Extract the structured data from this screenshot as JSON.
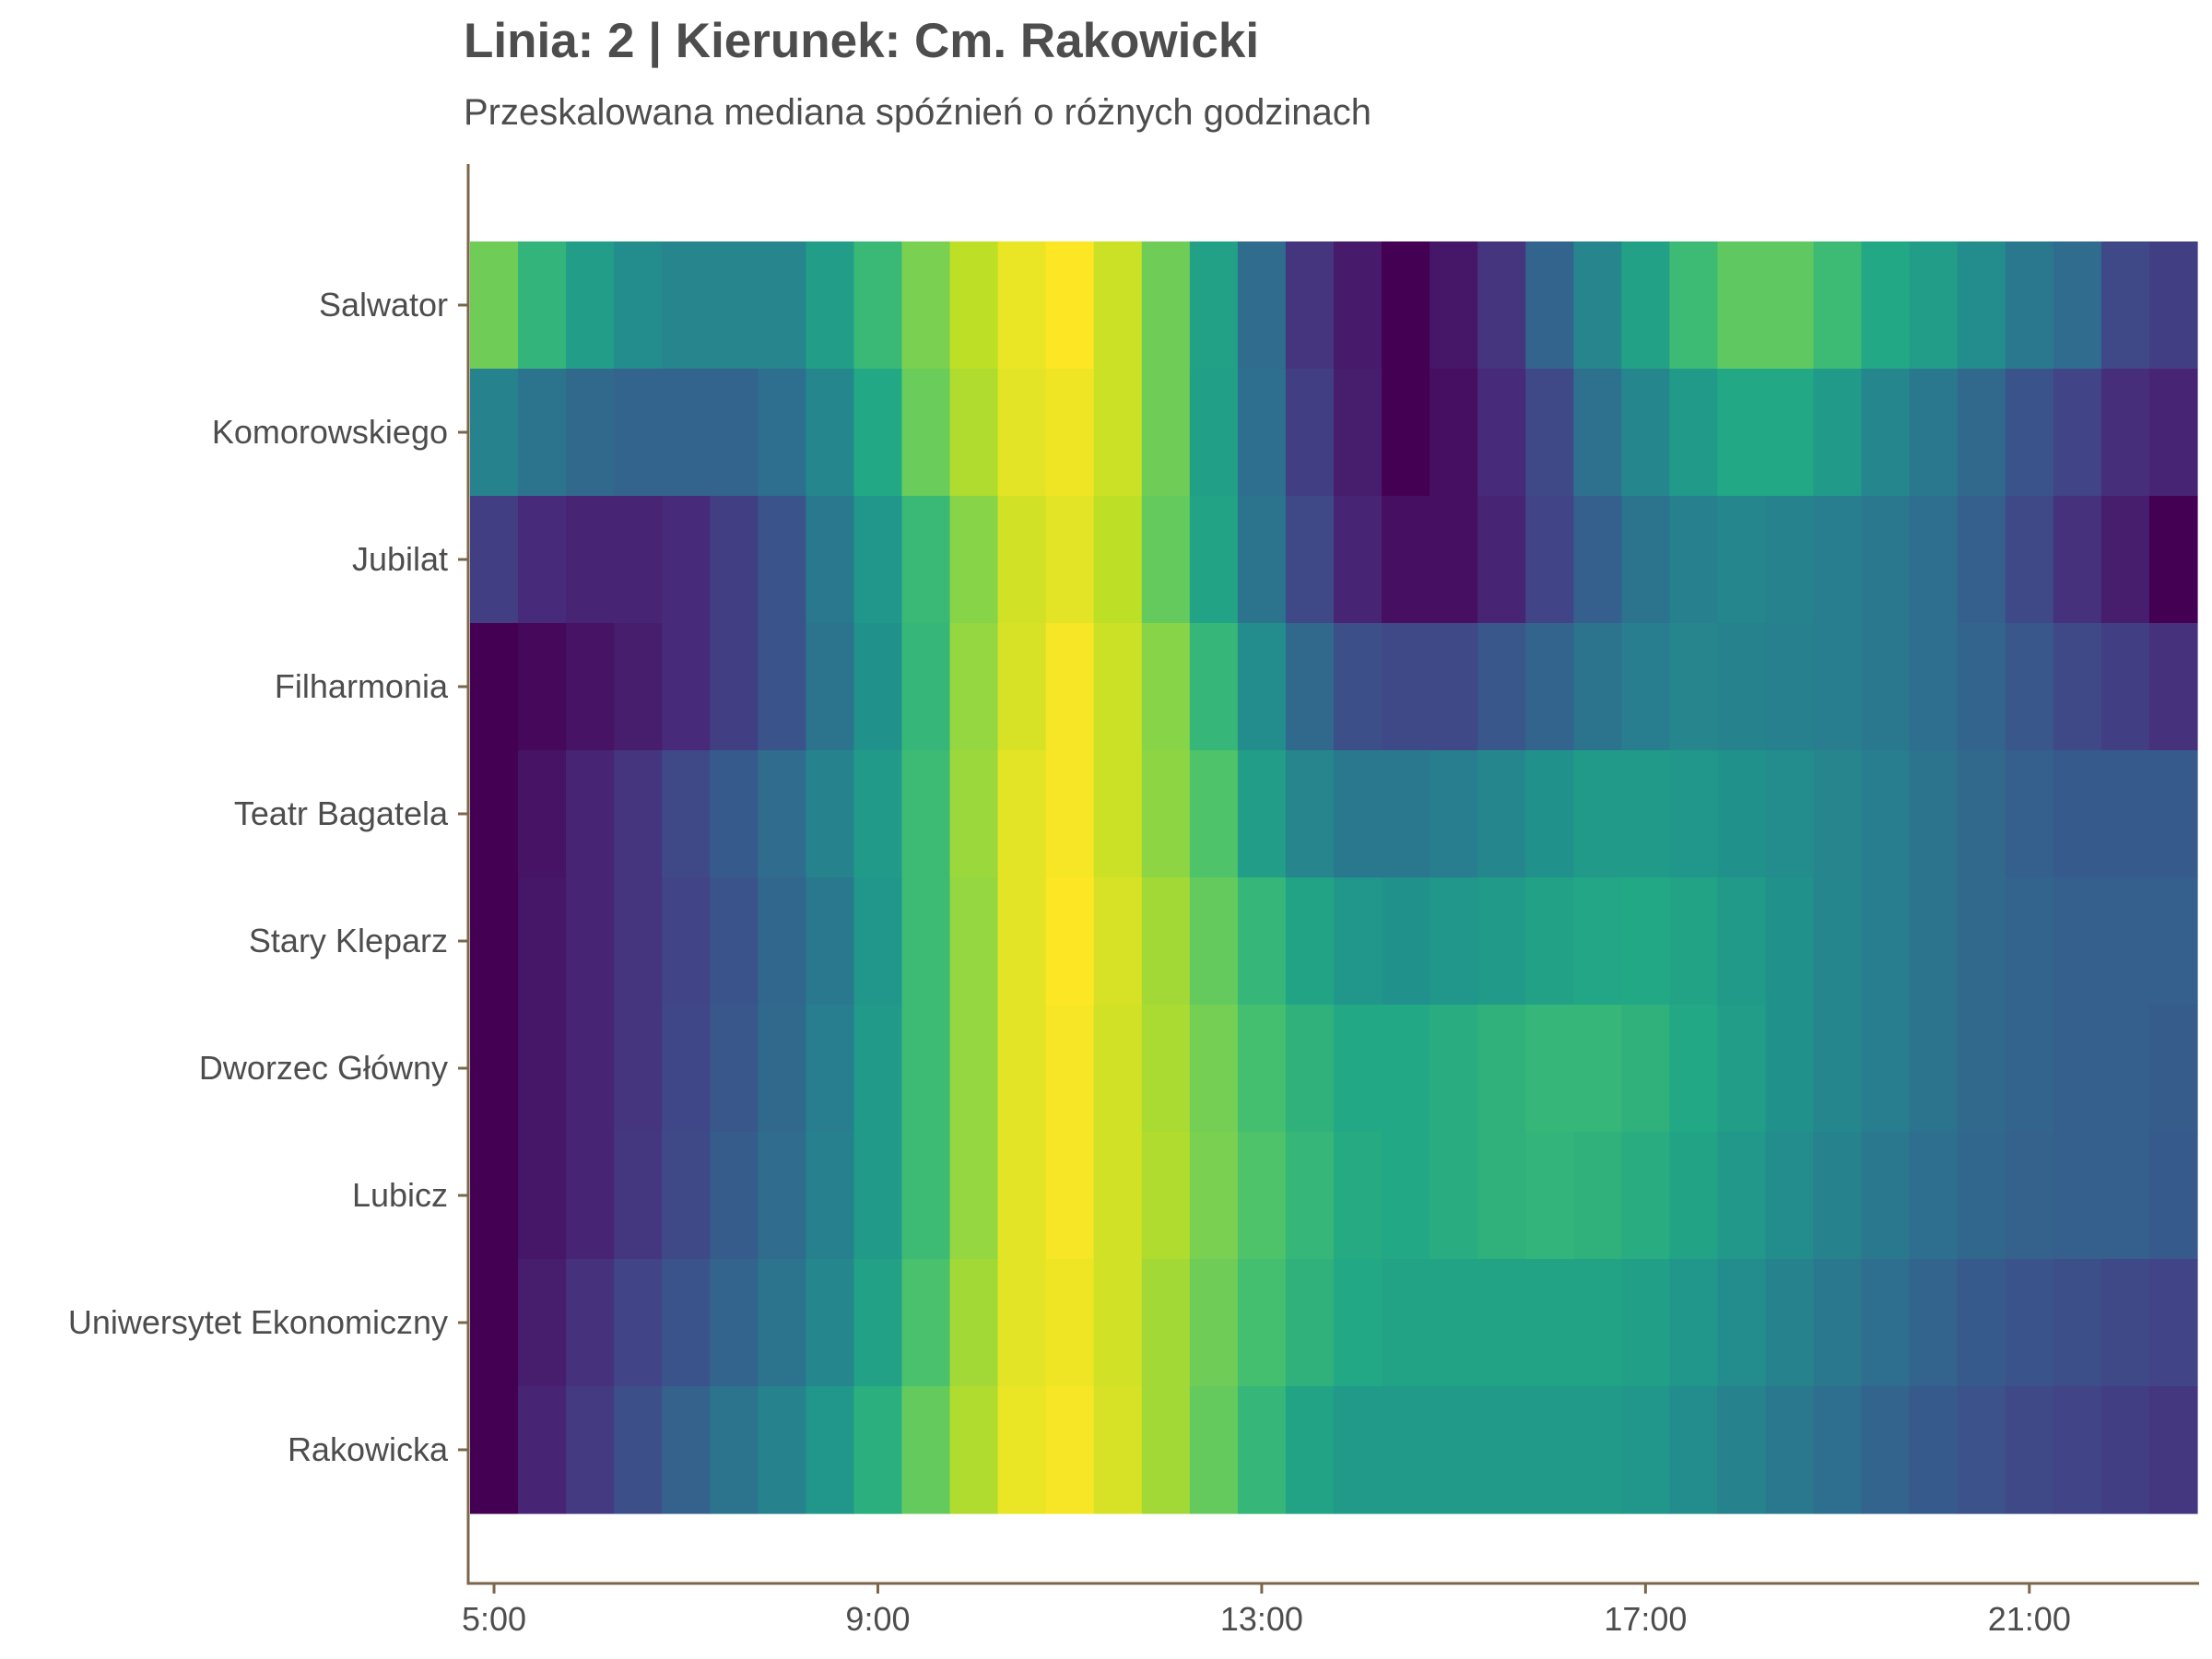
{
  "title": "Linia: 2 | Kierunek: Cm. Rakowicki",
  "subtitle": "Przeskalowana mediana spóźnień o różnych godzinach",
  "axis_color": "#7b6649",
  "chart_data": {
    "type": "heatmap",
    "title": "Linia: 2 | Kierunek: Cm. Rakowicki",
    "subtitle": "Przeskalowana mediana spóźnień o różnych godzinach",
    "colorscale": "viridis",
    "value_range": [
      0,
      1
    ],
    "x_start_hour": 5.0,
    "x_step_hours": 0.5,
    "x_range": [
      "5:00",
      "23:00"
    ],
    "x_ticks": [
      "5:00",
      "9:00",
      "13:00",
      "17:00",
      "21:00"
    ],
    "y_categories": [
      "Salwator",
      "Komorowskiego",
      "Jubilat",
      "Filharmonia",
      "Teatr Bagatela",
      "Stary Kleparz",
      "Dworzec Główny",
      "Lubicz",
      "Uniwersytet Ekonomiczny",
      "Rakowicka"
    ],
    "values": [
      [
        0.78,
        0.65,
        0.55,
        0.48,
        0.45,
        0.45,
        0.45,
        0.55,
        0.67,
        0.8,
        0.9,
        0.97,
        1.0,
        0.92,
        0.78,
        0.57,
        0.35,
        0.15,
        0.07,
        0.0,
        0.06,
        0.15,
        0.32,
        0.45,
        0.57,
        0.68,
        0.75,
        0.75,
        0.68,
        0.6,
        0.55,
        0.48,
        0.4,
        0.35,
        0.22,
        0.18
      ],
      [
        0.44,
        0.38,
        0.34,
        0.32,
        0.32,
        0.32,
        0.36,
        0.46,
        0.6,
        0.77,
        0.88,
        0.96,
        0.98,
        0.92,
        0.78,
        0.56,
        0.36,
        0.18,
        0.08,
        0.0,
        0.04,
        0.12,
        0.22,
        0.37,
        0.46,
        0.54,
        0.6,
        0.6,
        0.54,
        0.46,
        0.4,
        0.34,
        0.26,
        0.2,
        0.13,
        0.1
      ],
      [
        0.18,
        0.12,
        0.1,
        0.1,
        0.12,
        0.18,
        0.26,
        0.4,
        0.52,
        0.67,
        0.82,
        0.93,
        0.96,
        0.9,
        0.76,
        0.58,
        0.38,
        0.22,
        0.1,
        0.04,
        0.04,
        0.1,
        0.2,
        0.3,
        0.38,
        0.43,
        0.46,
        0.44,
        0.42,
        0.4,
        0.36,
        0.3,
        0.22,
        0.14,
        0.08,
        0.0
      ],
      [
        0.0,
        0.02,
        0.05,
        0.08,
        0.12,
        0.18,
        0.26,
        0.38,
        0.5,
        0.66,
        0.84,
        0.94,
        0.99,
        0.92,
        0.82,
        0.66,
        0.48,
        0.34,
        0.24,
        0.22,
        0.22,
        0.27,
        0.32,
        0.38,
        0.42,
        0.45,
        0.44,
        0.43,
        0.42,
        0.4,
        0.36,
        0.32,
        0.27,
        0.22,
        0.18,
        0.14
      ],
      [
        0.0,
        0.05,
        0.1,
        0.15,
        0.22,
        0.28,
        0.35,
        0.44,
        0.54,
        0.68,
        0.85,
        0.96,
        0.99,
        0.92,
        0.83,
        0.72,
        0.55,
        0.45,
        0.4,
        0.4,
        0.42,
        0.46,
        0.5,
        0.54,
        0.54,
        0.52,
        0.5,
        0.48,
        0.45,
        0.42,
        0.38,
        0.34,
        0.3,
        0.28,
        0.28,
        0.28
      ],
      [
        0.0,
        0.06,
        0.1,
        0.15,
        0.2,
        0.26,
        0.33,
        0.4,
        0.52,
        0.68,
        0.84,
        0.96,
        1.0,
        0.94,
        0.86,
        0.76,
        0.66,
        0.58,
        0.52,
        0.5,
        0.52,
        0.54,
        0.57,
        0.59,
        0.6,
        0.58,
        0.54,
        0.5,
        0.46,
        0.42,
        0.38,
        0.34,
        0.32,
        0.3,
        0.3,
        0.3
      ],
      [
        0.0,
        0.06,
        0.1,
        0.15,
        0.21,
        0.27,
        0.34,
        0.42,
        0.54,
        0.68,
        0.84,
        0.96,
        0.99,
        0.93,
        0.87,
        0.79,
        0.7,
        0.64,
        0.6,
        0.6,
        0.62,
        0.64,
        0.66,
        0.66,
        0.64,
        0.6,
        0.55,
        0.5,
        0.46,
        0.42,
        0.38,
        0.34,
        0.32,
        0.3,
        0.3,
        0.29
      ],
      [
        0.0,
        0.06,
        0.1,
        0.16,
        0.22,
        0.29,
        0.35,
        0.43,
        0.54,
        0.68,
        0.84,
        0.96,
        0.99,
        0.93,
        0.88,
        0.8,
        0.72,
        0.66,
        0.61,
        0.6,
        0.62,
        0.64,
        0.65,
        0.64,
        0.62,
        0.58,
        0.53,
        0.48,
        0.44,
        0.4,
        0.36,
        0.33,
        0.31,
        0.3,
        0.3,
        0.28
      ],
      [
        0.0,
        0.08,
        0.14,
        0.2,
        0.26,
        0.32,
        0.38,
        0.46,
        0.57,
        0.71,
        0.86,
        0.96,
        0.98,
        0.93,
        0.86,
        0.78,
        0.7,
        0.64,
        0.6,
        0.58,
        0.58,
        0.58,
        0.58,
        0.58,
        0.56,
        0.52,
        0.48,
        0.44,
        0.4,
        0.36,
        0.32,
        0.28,
        0.26,
        0.24,
        0.22,
        0.2
      ],
      [
        0.0,
        0.1,
        0.17,
        0.24,
        0.31,
        0.38,
        0.44,
        0.52,
        0.63,
        0.76,
        0.88,
        0.97,
        0.99,
        0.94,
        0.86,
        0.76,
        0.66,
        0.58,
        0.54,
        0.54,
        0.54,
        0.54,
        0.54,
        0.54,
        0.52,
        0.48,
        0.44,
        0.4,
        0.36,
        0.32,
        0.28,
        0.25,
        0.22,
        0.2,
        0.18,
        0.16
      ]
    ]
  }
}
